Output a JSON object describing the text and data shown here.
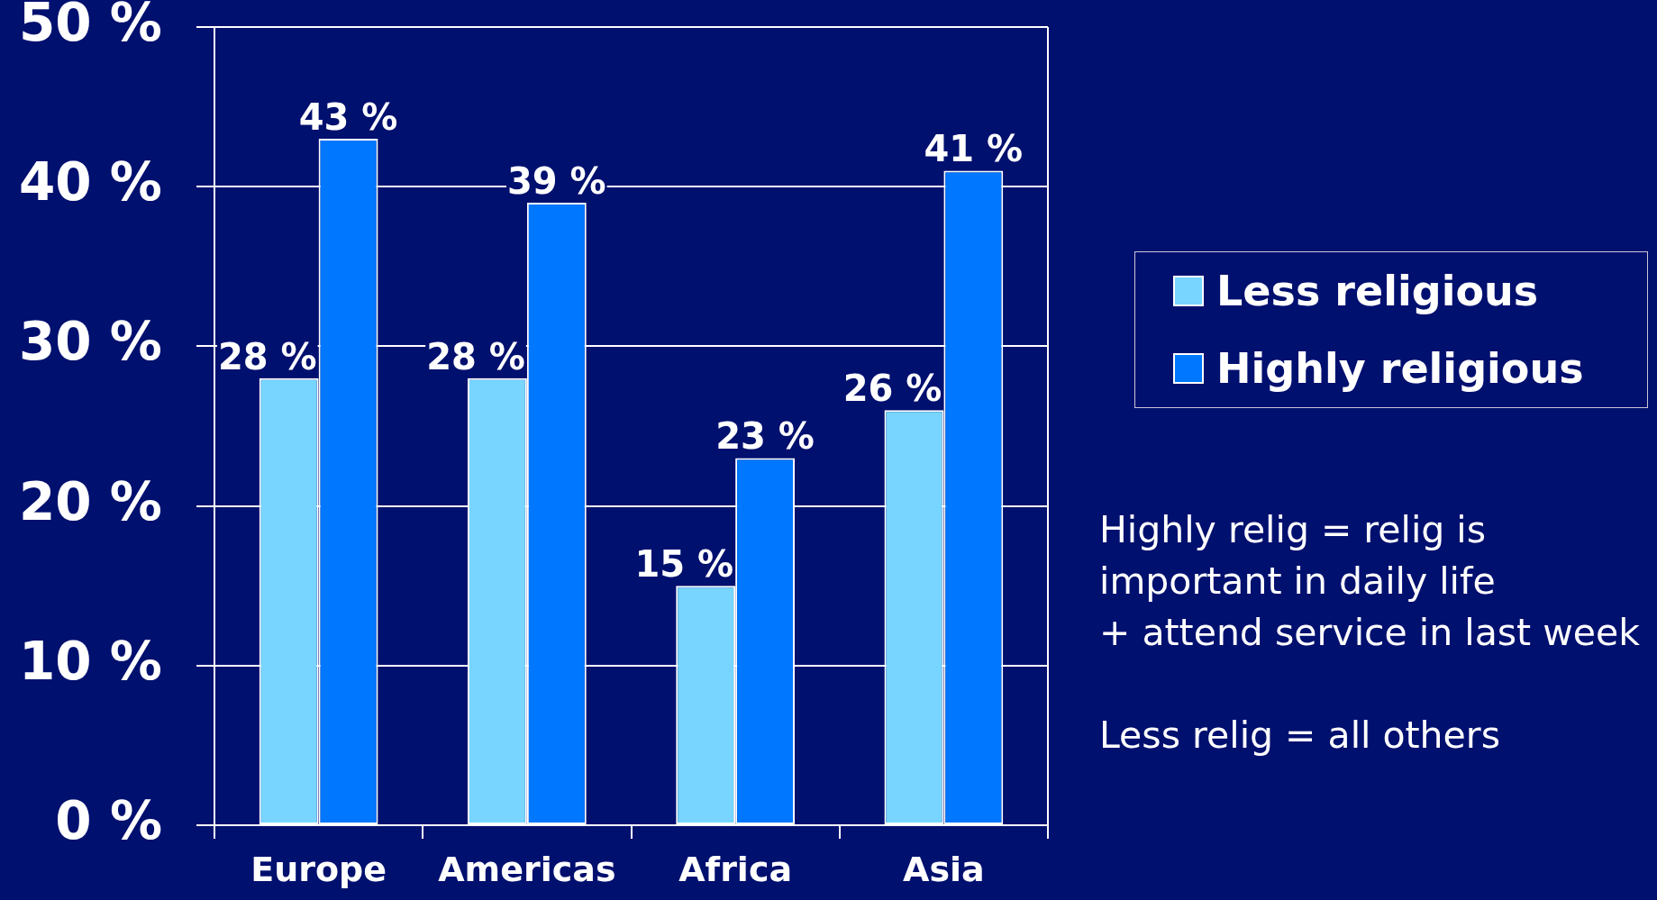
{
  "chart_data": {
    "type": "bar",
    "categories": [
      "Europe",
      "Americas",
      "Africa",
      "Asia"
    ],
    "series": [
      {
        "name": "Less religious",
        "color": "#77d5ff",
        "values": [
          28,
          28,
          15,
          26
        ],
        "value_labels": [
          "28 %",
          "28 %",
          "15 %",
          "26 %"
        ]
      },
      {
        "name": "Highly religious",
        "color": "#0077ff",
        "values": [
          43,
          39,
          23,
          41
        ],
        "value_labels": [
          "43 %",
          "39 %",
          "23 %",
          "41 %"
        ]
      }
    ],
    "ylim": [
      0,
      50
    ],
    "yticks": [
      {
        "value": 0,
        "label": "0 %"
      },
      {
        "value": 10,
        "label": "10 %"
      },
      {
        "value": 20,
        "label": "20 %"
      },
      {
        "value": 30,
        "label": "30 %"
      },
      {
        "value": 40,
        "label": "40 %"
      },
      {
        "value": 50,
        "label": "50 %"
      }
    ],
    "grid": "y",
    "legend": "right",
    "annotations": [
      "Highly relig = relig is\nimportant in daily life\n+ attend service in last week",
      "Less relig = all others"
    ]
  }
}
